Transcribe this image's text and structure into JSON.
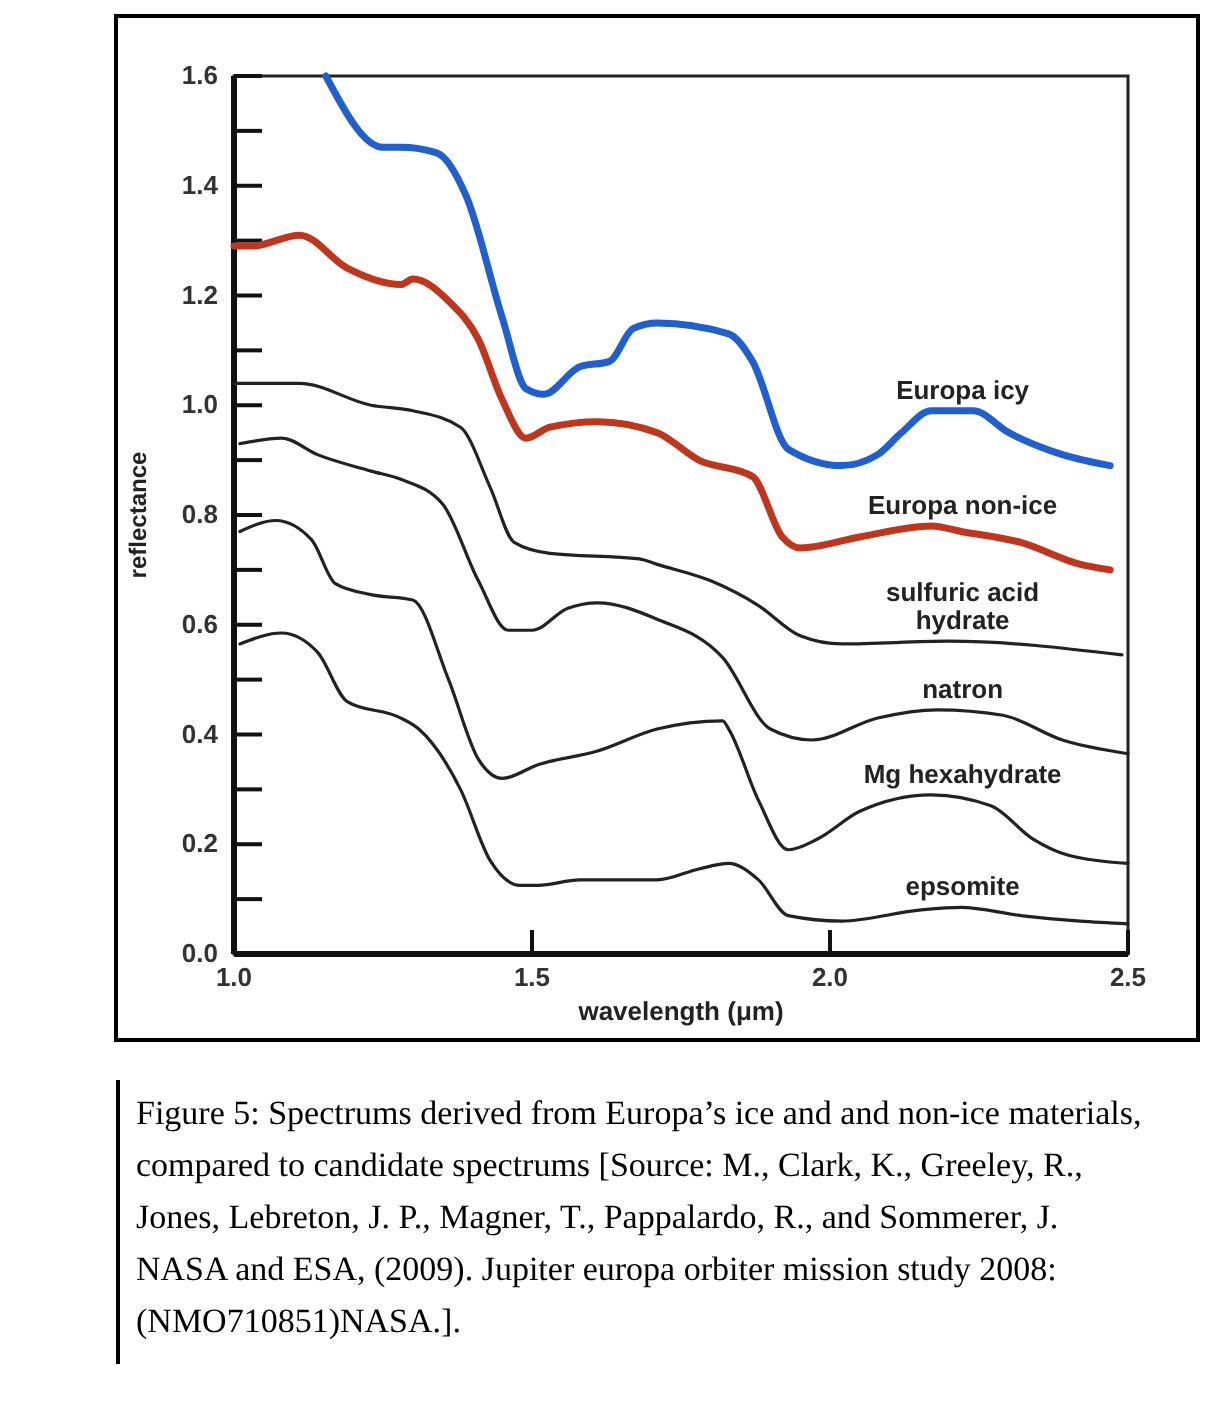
{
  "chart_data": {
    "type": "line",
    "xlabel": "wavelength (μm)",
    "ylabel": "reflectance",
    "xlim": [
      1.0,
      2.5
    ],
    "xticks": [
      {
        "value": 1.0,
        "label": "1.0"
      },
      {
        "value": 1.5,
        "label": "1.5"
      },
      {
        "value": 2.0,
        "label": "2.0"
      },
      {
        "value": 2.5,
        "label": "2.5"
      }
    ],
    "ylim": [
      0,
      1.6
    ],
    "yticks": [
      {
        "value": 0,
        "label": "0.0"
      },
      {
        "value": 0.1,
        "label": null
      },
      {
        "value": 0.2,
        "label": "0.2"
      },
      {
        "value": 0.3,
        "label": null
      },
      {
        "value": 0.4,
        "label": "0.4"
      },
      {
        "value": 0.5,
        "label": null
      },
      {
        "value": 0.6,
        "label": "0.6"
      },
      {
        "value": 0.7,
        "label": null
      },
      {
        "value": 0.8,
        "label": "0.8"
      },
      {
        "value": 0.9,
        "label": null
      },
      {
        "value": 1.0,
        "label": "1.0"
      },
      {
        "value": 1.1,
        "label": null
      },
      {
        "value": 1.2,
        "label": "1.2"
      },
      {
        "value": 1.3,
        "label": null
      },
      {
        "value": 1.4,
        "label": "1.4"
      },
      {
        "value": 1.5,
        "label": null
      },
      {
        "value": 1.6,
        "label": "1.6"
      }
    ],
    "grid": false,
    "marker": "none",
    "line_style": "solid",
    "series": [
      {
        "name": "Europa icy",
        "color": "#1f5fd0",
        "x": [
          1.154,
          1.25,
          1.28,
          1.34,
          1.39,
          1.45,
          1.49,
          1.52,
          1.58,
          1.63,
          1.67,
          1.71,
          1.83,
          1.87,
          1.93,
          2.02,
          2.08,
          2.12,
          2.17,
          2.24,
          2.3,
          2.39,
          2.47
        ],
        "values": [
          1.6,
          1.47,
          1.47,
          1.46,
          1.38,
          1.16,
          1.03,
          1.02,
          1.07,
          1.08,
          1.14,
          1.15,
          1.13,
          1.08,
          0.92,
          0.89,
          0.91,
          0.95,
          0.99,
          0.99,
          0.95,
          0.91,
          0.89
        ]
      },
      {
        "name": "Europa non-ice",
        "color": "#c0361c",
        "x": [
          1.0,
          1.03,
          1.11,
          1.19,
          1.28,
          1.3,
          1.36,
          1.41,
          1.45,
          1.49,
          1.53,
          1.61,
          1.71,
          1.78,
          1.87,
          1.92,
          1.95,
          2.05,
          2.17,
          2.22,
          2.32,
          2.42,
          2.47
        ],
        "values": [
          1.29,
          1.29,
          1.31,
          1.25,
          1.22,
          1.23,
          1.19,
          1.12,
          1.01,
          0.94,
          0.96,
          0.97,
          0.95,
          0.9,
          0.87,
          0.76,
          0.74,
          0.76,
          0.78,
          0.77,
          0.75,
          0.71,
          0.7
        ]
      },
      {
        "name": "sulfuric acid hydrate",
        "color": "#222222",
        "x": [
          1.0,
          1.11,
          1.23,
          1.3,
          1.38,
          1.43,
          1.47,
          1.53,
          1.68,
          1.71,
          1.8,
          1.88,
          1.95,
          2.02,
          2.2,
          2.49
        ],
        "values": [
          1.04,
          1.04,
          1.0,
          0.99,
          0.96,
          0.85,
          0.75,
          0.73,
          0.72,
          0.71,
          0.68,
          0.635,
          0.58,
          0.565,
          0.57,
          0.545
        ]
      },
      {
        "name": "natron",
        "color": "#222222",
        "x": [
          1.01,
          1.08,
          1.14,
          1.23,
          1.28,
          1.35,
          1.41,
          1.46,
          1.5,
          1.56,
          1.61,
          1.71,
          1.82,
          1.9,
          1.97,
          2.08,
          2.18,
          2.29,
          2.39,
          2.5
        ],
        "values": [
          0.93,
          0.94,
          0.91,
          0.88,
          0.865,
          0.82,
          0.68,
          0.59,
          0.59,
          0.63,
          0.64,
          0.61,
          0.54,
          0.41,
          0.39,
          0.43,
          0.445,
          0.435,
          0.39,
          0.365
        ]
      },
      {
        "name": "Mg hexahydrate",
        "color": "#222222",
        "x": [
          1.01,
          1.07,
          1.13,
          1.17,
          1.23,
          1.3,
          1.36,
          1.41,
          1.45,
          1.51,
          1.61,
          1.71,
          1.82,
          1.83,
          1.88,
          1.93,
          1.98,
          2.05,
          2.17,
          2.27,
          2.34,
          2.4,
          2.5
        ],
        "values": [
          0.77,
          0.79,
          0.755,
          0.675,
          0.655,
          0.645,
          0.5,
          0.355,
          0.32,
          0.345,
          0.37,
          0.41,
          0.425,
          0.41,
          0.28,
          0.19,
          0.21,
          0.26,
          0.29,
          0.27,
          0.21,
          0.18,
          0.165
        ]
      },
      {
        "name": "epsomite",
        "color": "#222222",
        "x": [
          1.01,
          1.08,
          1.14,
          1.19,
          1.28,
          1.31,
          1.38,
          1.43,
          1.48,
          1.51,
          1.58,
          1.71,
          1.78,
          1.83,
          1.88,
          1.93,
          2.02,
          2.15,
          2.22,
          2.32,
          2.42,
          2.5
        ],
        "values": [
          0.565,
          0.585,
          0.55,
          0.46,
          0.43,
          0.41,
          0.3,
          0.17,
          0.125,
          0.125,
          0.135,
          0.135,
          0.155,
          0.165,
          0.135,
          0.07,
          0.06,
          0.08,
          0.085,
          0.07,
          0.06,
          0.055
        ]
      }
    ],
    "annotations": [
      "Figure 5: Spectrums derived from Europa’s ice and and non-ice materials, compared to candidate spectrums [Source: M., Clark, K., Greeley, R., Jones,  Lebreton, J. P.,  Magner, T., Pappalardo, R.,  and Sommerer,  J. NASA and ESA, (2009). Jupiter europa orbiter mission study 2008: (NMO710851)NASA.]."
    ]
  }
}
